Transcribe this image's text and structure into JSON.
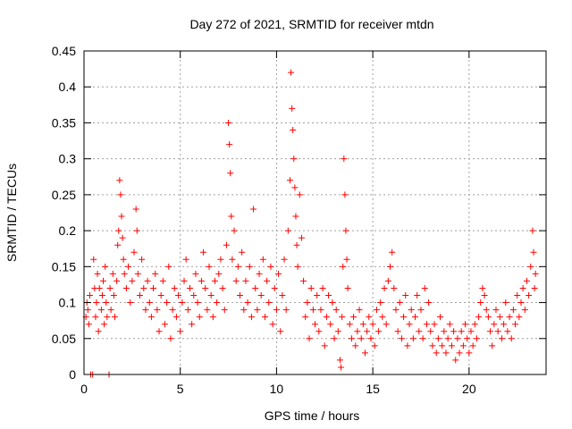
{
  "chart_data": {
    "type": "scatter",
    "title": "Day 272 of 2021, SRMTID for receiver mtdn",
    "xlabel": "GPS time / hours",
    "ylabel": "SRMTID / TECUs",
    "xlim": [
      0,
      24
    ],
    "ylim": [
      0,
      0.45
    ],
    "xticks": [
      0,
      5,
      10,
      15,
      20
    ],
    "yticks": [
      0,
      0.05,
      0.1,
      0.15,
      0.2,
      0.25,
      0.3,
      0.35,
      0.4,
      0.45
    ],
    "xtick_labels": [
      "0",
      "5",
      "10",
      "15",
      "20"
    ],
    "ytick_labels": [
      "0",
      "0.05",
      "0.1",
      "0.15",
      "0.2",
      "0.25",
      "0.3",
      "0.35",
      "0.4",
      "0.45"
    ],
    "grid": true,
    "series": [
      {
        "name": "SRMTID",
        "color": "#ff0000",
        "marker": "plus",
        "points": [
          [
            0.1,
            0.08
          ],
          [
            0.15,
            0.1
          ],
          [
            0.2,
            0.09
          ],
          [
            0.25,
            0.07
          ],
          [
            0.3,
            0.11
          ],
          [
            0.35,
            0.0
          ],
          [
            0.45,
            0.0
          ],
          [
            0.5,
            0.16
          ],
          [
            0.55,
            0.12
          ],
          [
            0.6,
            0.08
          ],
          [
            0.65,
            0.1
          ],
          [
            0.7,
            0.14
          ],
          [
            0.75,
            0.06
          ],
          [
            0.8,
            0.12
          ],
          [
            0.9,
            0.09
          ],
          [
            0.95,
            0.11
          ],
          [
            1.0,
            0.13
          ],
          [
            1.05,
            0.07
          ],
          [
            1.1,
            0.15
          ],
          [
            1.15,
            0.1
          ],
          [
            1.2,
            0.08
          ],
          [
            1.3,
            0.0
          ],
          [
            1.35,
            0.12
          ],
          [
            1.4,
            0.09
          ],
          [
            1.5,
            0.14
          ],
          [
            1.55,
            0.11
          ],
          [
            1.6,
            0.08
          ],
          [
            1.7,
            0.13
          ],
          [
            1.75,
            0.18
          ],
          [
            1.8,
            0.2
          ],
          [
            1.85,
            0.27
          ],
          [
            1.9,
            0.25
          ],
          [
            1.95,
            0.22
          ],
          [
            2.0,
            0.19
          ],
          [
            2.05,
            0.16
          ],
          [
            2.1,
            0.14
          ],
          [
            2.2,
            0.12
          ],
          [
            2.3,
            0.15
          ],
          [
            2.4,
            0.1
          ],
          [
            2.5,
            0.13
          ],
          [
            2.6,
            0.17
          ],
          [
            2.7,
            0.23
          ],
          [
            2.75,
            0.2
          ],
          [
            2.8,
            0.14
          ],
          [
            2.9,
            0.11
          ],
          [
            3.0,
            0.16
          ],
          [
            3.1,
            0.12
          ],
          [
            3.2,
            0.09
          ],
          [
            3.3,
            0.13
          ],
          [
            3.4,
            0.1
          ],
          [
            3.5,
            0.08
          ],
          [
            3.6,
            0.12
          ],
          [
            3.7,
            0.14
          ],
          [
            3.8,
            0.09
          ],
          [
            3.9,
            0.06
          ],
          [
            4.0,
            0.11
          ],
          [
            4.1,
            0.13
          ],
          [
            4.2,
            0.07
          ],
          [
            4.3,
            0.1
          ],
          [
            4.4,
            0.15
          ],
          [
            4.5,
            0.05
          ],
          [
            4.6,
            0.09
          ],
          [
            4.7,
            0.12
          ],
          [
            4.8,
            0.08
          ],
          [
            4.9,
            0.11
          ],
          [
            5.0,
            0.06
          ],
          [
            5.1,
            0.1
          ],
          [
            5.2,
            0.13
          ],
          [
            5.3,
            0.16
          ],
          [
            5.4,
            0.09
          ],
          [
            5.5,
            0.12
          ],
          [
            5.6,
            0.07
          ],
          [
            5.7,
            0.11
          ],
          [
            5.8,
            0.14
          ],
          [
            5.9,
            0.1
          ],
          [
            6.0,
            0.08
          ],
          [
            6.1,
            0.13
          ],
          [
            6.2,
            0.17
          ],
          [
            6.3,
            0.12
          ],
          [
            6.4,
            0.09
          ],
          [
            6.5,
            0.15
          ],
          [
            6.6,
            0.11
          ],
          [
            6.7,
            0.08
          ],
          [
            6.8,
            0.13
          ],
          [
            6.9,
            0.1
          ],
          [
            7.0,
            0.14
          ],
          [
            7.1,
            0.16
          ],
          [
            7.2,
            0.12
          ],
          [
            7.3,
            0.09
          ],
          [
            7.4,
            0.18
          ],
          [
            7.5,
            0.35
          ],
          [
            7.55,
            0.32
          ],
          [
            7.6,
            0.28
          ],
          [
            7.65,
            0.22
          ],
          [
            7.7,
            0.16
          ],
          [
            7.8,
            0.2
          ],
          [
            7.9,
            0.13
          ],
          [
            8.0,
            0.15
          ],
          [
            8.1,
            0.11
          ],
          [
            8.2,
            0.17
          ],
          [
            8.3,
            0.09
          ],
          [
            8.4,
            0.13
          ],
          [
            8.5,
            0.1
          ],
          [
            8.6,
            0.15
          ],
          [
            8.7,
            0.08
          ],
          [
            8.8,
            0.23
          ],
          [
            8.9,
            0.12
          ],
          [
            9.0,
            0.09
          ],
          [
            9.1,
            0.14
          ],
          [
            9.2,
            0.11
          ],
          [
            9.3,
            0.16
          ],
          [
            9.4,
            0.08
          ],
          [
            9.5,
            0.13
          ],
          [
            9.6,
            0.1
          ],
          [
            9.7,
            0.15
          ],
          [
            9.8,
            0.07
          ],
          [
            9.9,
            0.12
          ],
          [
            10.0,
            0.09
          ],
          [
            10.1,
            0.14
          ],
          [
            10.2,
            0.06
          ],
          [
            10.3,
            0.11
          ],
          [
            10.4,
            0.16
          ],
          [
            10.5,
            0.09
          ],
          [
            10.6,
            0.2
          ],
          [
            10.7,
            0.27
          ],
          [
            10.75,
            0.42
          ],
          [
            10.8,
            0.37
          ],
          [
            10.85,
            0.34
          ],
          [
            10.9,
            0.3
          ],
          [
            10.95,
            0.26
          ],
          [
            11.0,
            0.22
          ],
          [
            11.05,
            0.18
          ],
          [
            11.1,
            0.15
          ],
          [
            11.2,
            0.25
          ],
          [
            11.3,
            0.19
          ],
          [
            11.4,
            0.13
          ],
          [
            11.5,
            0.08
          ],
          [
            11.6,
            0.1
          ],
          [
            11.7,
            0.05
          ],
          [
            11.8,
            0.12
          ],
          [
            11.9,
            0.09
          ],
          [
            12.0,
            0.07
          ],
          [
            12.1,
            0.11
          ],
          [
            12.2,
            0.06
          ],
          [
            12.3,
            0.09
          ],
          [
            12.4,
            0.12
          ],
          [
            12.5,
            0.04
          ],
          [
            12.6,
            0.08
          ],
          [
            12.7,
            0.11
          ],
          [
            12.8,
            0.07
          ],
          [
            12.9,
            0.1
          ],
          [
            13.0,
            0.05
          ],
          [
            13.1,
            0.09
          ],
          [
            13.2,
            0.06
          ],
          [
            13.3,
            0.02
          ],
          [
            13.35,
            0.01
          ],
          [
            13.4,
            0.08
          ],
          [
            13.45,
            0.15
          ],
          [
            13.5,
            0.3
          ],
          [
            13.55,
            0.25
          ],
          [
            13.6,
            0.2
          ],
          [
            13.65,
            0.16
          ],
          [
            13.7,
            0.12
          ],
          [
            13.8,
            0.07
          ],
          [
            13.9,
            0.05
          ],
          [
            14.0,
            0.08
          ],
          [
            14.1,
            0.04
          ],
          [
            14.2,
            0.06
          ],
          [
            14.3,
            0.09
          ],
          [
            14.4,
            0.05
          ],
          [
            14.5,
            0.07
          ],
          [
            14.6,
            0.03
          ],
          [
            14.7,
            0.06
          ],
          [
            14.8,
            0.08
          ],
          [
            14.9,
            0.05
          ],
          [
            15.0,
            0.07
          ],
          [
            15.1,
            0.04
          ],
          [
            15.2,
            0.09
          ],
          [
            15.3,
            0.06
          ],
          [
            15.4,
            0.1
          ],
          [
            15.5,
            0.08
          ],
          [
            15.6,
            0.12
          ],
          [
            15.7,
            0.07
          ],
          [
            15.8,
            0.13
          ],
          [
            15.9,
            0.15
          ],
          [
            16.0,
            0.17
          ],
          [
            16.1,
            0.12
          ],
          [
            16.2,
            0.09
          ],
          [
            16.3,
            0.06
          ],
          [
            16.4,
            0.1
          ],
          [
            16.5,
            0.05
          ],
          [
            16.6,
            0.08
          ],
          [
            16.7,
            0.11
          ],
          [
            16.8,
            0.04
          ],
          [
            16.9,
            0.07
          ],
          [
            17.0,
            0.09
          ],
          [
            17.1,
            0.05
          ],
          [
            17.2,
            0.08
          ],
          [
            17.3,
            0.11
          ],
          [
            17.4,
            0.06
          ],
          [
            17.5,
            0.09
          ],
          [
            17.6,
            0.05
          ],
          [
            17.7,
            0.12
          ],
          [
            17.8,
            0.07
          ],
          [
            17.9,
            0.1
          ],
          [
            18.0,
            0.06
          ],
          [
            18.1,
            0.04
          ],
          [
            18.2,
            0.07
          ],
          [
            18.3,
            0.03
          ],
          [
            18.4,
            0.05
          ],
          [
            18.5,
            0.08
          ],
          [
            18.6,
            0.04
          ],
          [
            18.7,
            0.06
          ],
          [
            18.8,
            0.03
          ],
          [
            18.9,
            0.05
          ],
          [
            19.0,
            0.07
          ],
          [
            19.1,
            0.04
          ],
          [
            19.2,
            0.06
          ],
          [
            19.3,
            0.02
          ],
          [
            19.4,
            0.05
          ],
          [
            19.5,
            0.03
          ],
          [
            19.6,
            0.06
          ],
          [
            19.7,
            0.04
          ],
          [
            19.8,
            0.07
          ],
          [
            19.9,
            0.05
          ],
          [
            20.0,
            0.03
          ],
          [
            20.1,
            0.06
          ],
          [
            20.2,
            0.04
          ],
          [
            20.3,
            0.07
          ],
          [
            20.4,
            0.05
          ],
          [
            20.5,
            0.08
          ],
          [
            20.6,
            0.1
          ],
          [
            20.7,
            0.12
          ],
          [
            20.8,
            0.11
          ],
          [
            20.9,
            0.09
          ],
          [
            21.0,
            0.08
          ],
          [
            21.1,
            0.06
          ],
          [
            21.2,
            0.04
          ],
          [
            21.3,
            0.07
          ],
          [
            21.4,
            0.09
          ],
          [
            21.5,
            0.06
          ],
          [
            21.6,
            0.08
          ],
          [
            21.7,
            0.05
          ],
          [
            21.8,
            0.07
          ],
          [
            21.9,
            0.1
          ],
          [
            22.0,
            0.06
          ],
          [
            22.1,
            0.08
          ],
          [
            22.2,
            0.05
          ],
          [
            22.3,
            0.09
          ],
          [
            22.4,
            0.07
          ],
          [
            22.5,
            0.11
          ],
          [
            22.6,
            0.08
          ],
          [
            22.7,
            0.1
          ],
          [
            22.8,
            0.12
          ],
          [
            22.9,
            0.09
          ],
          [
            23.0,
            0.13
          ],
          [
            23.1,
            0.11
          ],
          [
            23.2,
            0.15
          ],
          [
            23.3,
            0.2
          ],
          [
            23.35,
            0.17
          ],
          [
            23.4,
            0.12
          ],
          [
            23.45,
            0.14
          ]
        ]
      }
    ]
  }
}
